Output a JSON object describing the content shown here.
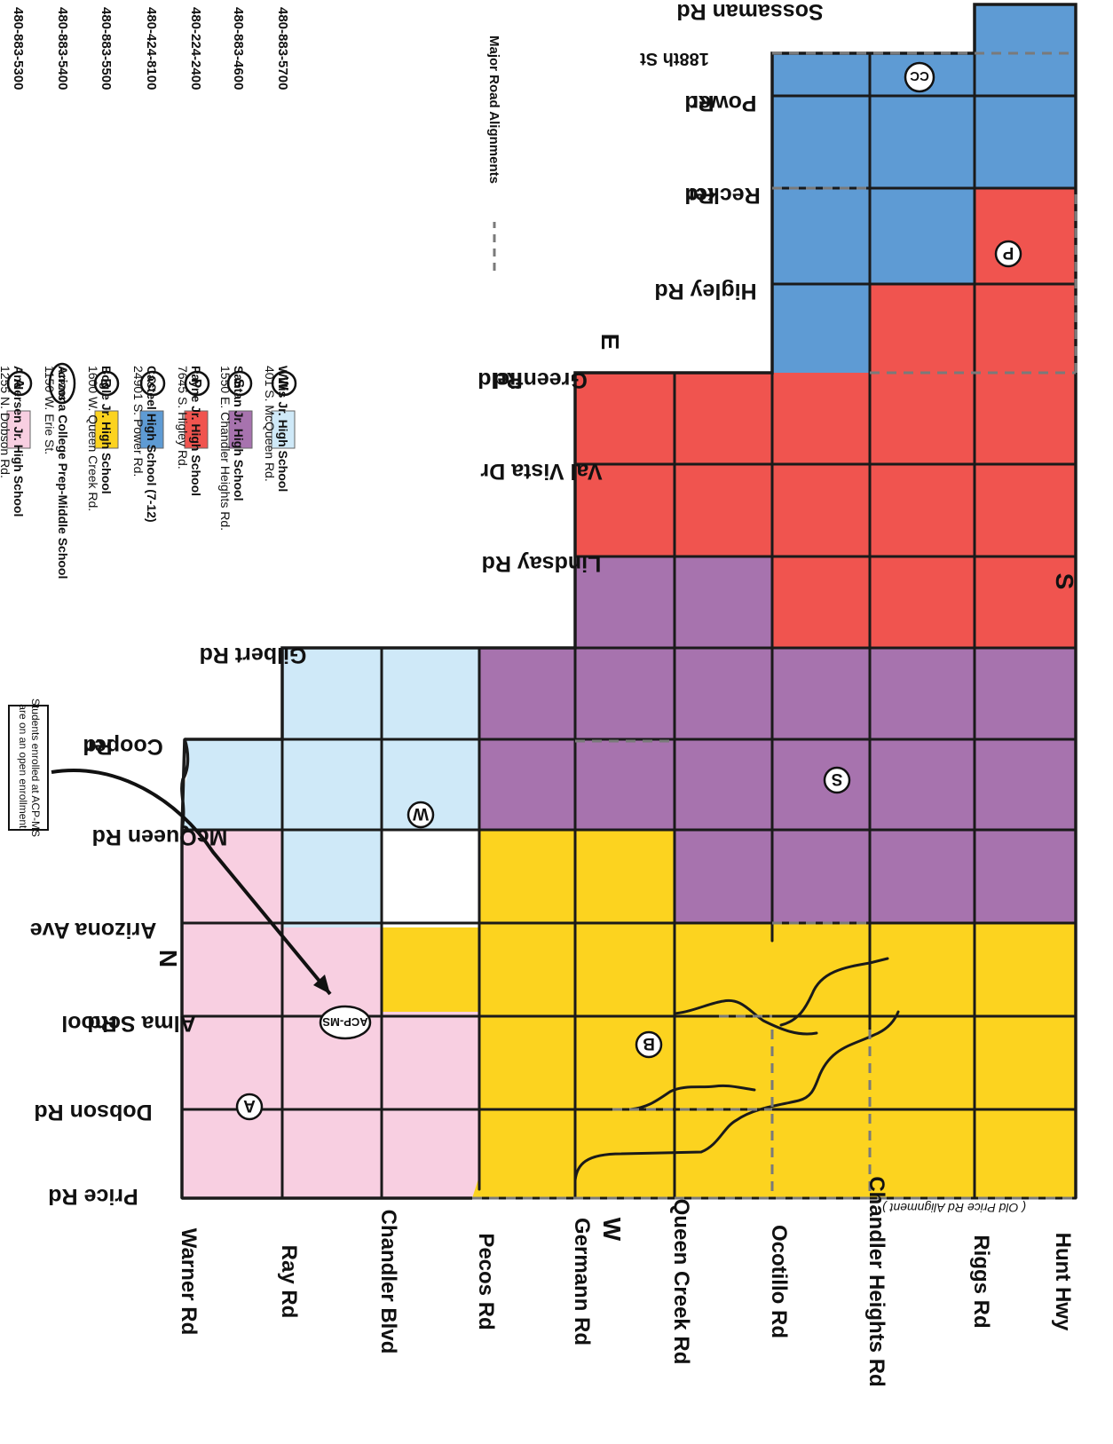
{
  "schools": [
    {
      "marker": "A",
      "name": "Andersen Jr. High School",
      "address": "1255 N. Dobson Rd.",
      "phone": "480-883-5300",
      "color": "#f8cfe1"
    },
    {
      "marker": "ACP-MS",
      "name": "Arizona College Prep-Middle School",
      "address": "1150 W. Erie St.",
      "phone": "480-883-5400",
      "color": ""
    },
    {
      "marker": "B",
      "name": "Bogle Jr. High School",
      "address": "1600 W. Queen Creek Rd.",
      "phone": "480-883-5500",
      "color": "#fcd31f"
    },
    {
      "marker": "CC",
      "name": "Casteel High School (7-12)",
      "address": "24901 S. Power Rd.",
      "phone": "480-424-8100",
      "color": "#5e9bd4"
    },
    {
      "marker": "P",
      "name": "Payne Jr. High School",
      "address": "7645 S. Higley Rd.",
      "phone": "480-224-2400",
      "color": "#f0544f"
    },
    {
      "marker": "S",
      "name": "Santan Jr. High School",
      "address": "1550 E. Chandler Heights Rd.",
      "phone": "480-883-4600",
      "color": "#a773ae"
    },
    {
      "marker": "W",
      "name": "Willis Jr. High School",
      "address": "401 S. McQueen Rd.",
      "phone": "480-883-5700",
      "color": "#cfe9f8"
    }
  ],
  "legend": {
    "major_road_alignments": "Major Road Alignments",
    "open_enrollment_note": [
      "Students enrolled at ACP-MS",
      "are on an open enrollment."
    ]
  },
  "roads_ew": [
    "Warner Rd",
    "Ray Rd",
    "Chandler Blvd",
    "Pecos Rd",
    "Germann Rd",
    "Queen Creek Rd",
    "Ocotillo Rd",
    "Chandler Heights Rd",
    "Riggs Rd",
    "Hunt Hwy"
  ],
  "roads_ns": [
    {
      "id": "price",
      "lines": [
        "Price Rd"
      ]
    },
    {
      "id": "dobson",
      "lines": [
        "Dobson Rd"
      ]
    },
    {
      "id": "alma",
      "lines": [
        "Alma School",
        "Rd"
      ]
    },
    {
      "id": "arizona",
      "lines": [
        "Arizona Ave"
      ]
    },
    {
      "id": "mcqueen",
      "lines": [
        "McQueen Rd"
      ]
    },
    {
      "id": "cooper",
      "lines": [
        "Cooper",
        "Rd"
      ]
    },
    {
      "id": "gilbert",
      "lines": [
        "Gilbert Rd"
      ]
    },
    {
      "id": "lindsay",
      "lines": [
        "Lindsay Rd"
      ]
    },
    {
      "id": "valvista",
      "lines": [
        "Val Vista Dr"
      ]
    },
    {
      "id": "greenfield",
      "lines": [
        "Greenfield",
        "Rd"
      ]
    },
    {
      "id": "higley",
      "lines": [
        "Higley Rd"
      ]
    },
    {
      "id": "recker",
      "lines": [
        "Recker",
        "Rd"
      ]
    },
    {
      "id": "power",
      "lines": [
        "Power",
        "Rd"
      ]
    },
    {
      "id": "188th",
      "lines": [
        "188th St"
      ]
    },
    {
      "id": "sossaman",
      "lines": [
        "Sossaman Rd"
      ]
    }
  ],
  "old_price_note": "( Old Price Rd Alignment )",
  "compass": {
    "n": "N",
    "s": "S",
    "e": "E",
    "w": "W"
  }
}
